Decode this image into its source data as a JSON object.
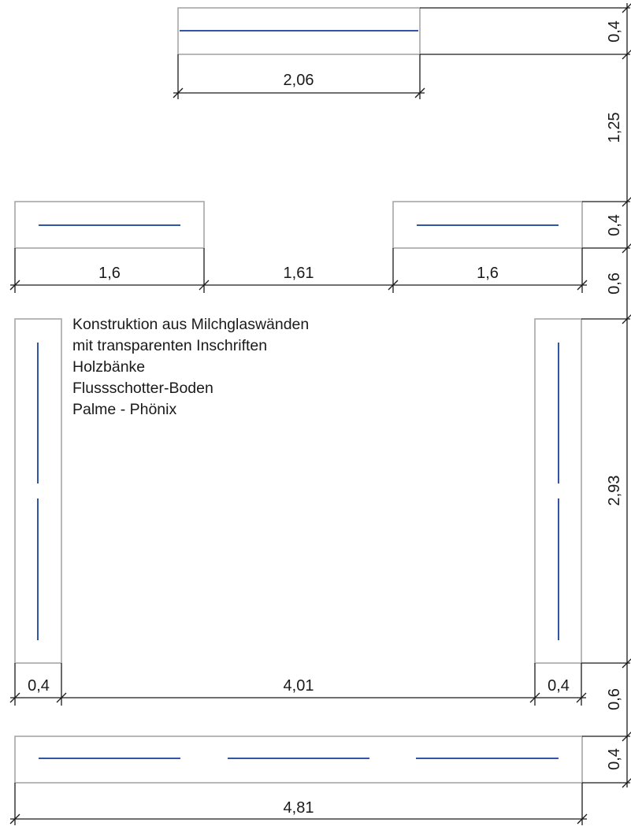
{
  "dimensions": {
    "top_bench_width": "2,06",
    "top_bench_depth": "0,4",
    "gap_top_to_middle": "1,25",
    "middle_bench_depth": "0,4",
    "middle_left_width": "1,6",
    "middle_gap_width": "1,61",
    "middle_right_width": "1,6",
    "gap_middle_to_sides": "0,6",
    "side_bench_height": "2,93",
    "left_side_width": "0,4",
    "inner_width": "4,01",
    "right_side_width": "0,4",
    "gap_sides_to_bottom": "0,6",
    "bottom_bench_depth": "0,4",
    "bottom_bench_width": "4,81"
  },
  "notes": [
    "Konstruktion aus Milchglaswänden",
    "mit transparenten Inschriften",
    "Holzbänke",
    "Flussschotter-Boden",
    "Palme - Phönix"
  ],
  "colors": {
    "bench_outline": "#a6a6a6",
    "inscription_line": "#3355a6",
    "dimension_line": "#1a1a1a"
  }
}
